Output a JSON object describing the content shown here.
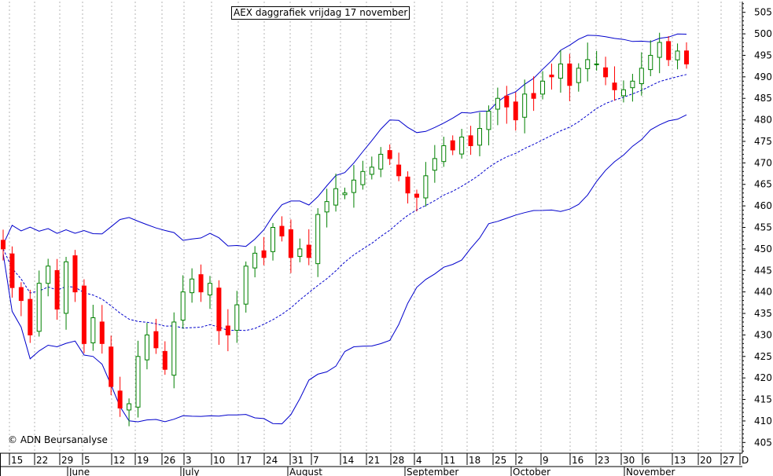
{
  "chart_data": {
    "type": "candlestick",
    "title": "AEX daggrafiek vrijdag 17 november",
    "credit": "© ADN Beursanalyse",
    "ylim": [
      400,
      510
    ],
    "y_ticks": [
      405,
      410,
      415,
      420,
      425,
      430,
      435,
      440,
      445,
      450,
      455,
      460,
      465,
      470,
      475,
      480,
      485,
      490,
      495,
      500,
      505
    ],
    "grid": "vertical dotted lines at each week",
    "x_ticks": [
      "15",
      "22",
      "29",
      "5",
      "12",
      "19",
      "26",
      "3",
      "10",
      "17",
      "24",
      "31",
      "7",
      "14",
      "21",
      "28",
      "4",
      "11",
      "18",
      "25",
      "2",
      "9",
      "16",
      "23",
      "30",
      "6",
      "13",
      "20",
      "27",
      "D"
    ],
    "months": [
      "June",
      "July",
      "August",
      "September",
      "October",
      "November"
    ],
    "colors": {
      "up": "#008000",
      "down": "#ff0000",
      "band": "#0000cc",
      "grid": "#b4b4b4"
    },
    "series": [
      {
        "kind": "candles",
        "open_close_estimated": true
      },
      {
        "kind": "bollinger_upper"
      },
      {
        "kind": "moving_average"
      },
      {
        "kind": "bollinger_lower"
      }
    ],
    "closes": [
      450,
      441,
      438,
      430,
      442,
      446,
      436,
      447,
      440,
      428,
      434,
      428,
      418,
      413,
      414,
      425,
      430,
      427,
      422,
      433,
      440,
      443,
      440,
      442,
      431,
      430,
      437,
      446,
      449,
      448,
      455,
      453,
      448,
      450,
      448,
      458,
      461,
      464,
      463,
      466,
      468,
      469,
      472,
      471,
      467,
      463,
      462,
      467,
      471,
      474,
      473,
      476,
      474,
      478,
      482,
      485,
      483,
      480,
      486,
      485,
      489,
      490,
      493,
      488,
      492,
      494,
      493,
      490,
      487,
      487,
      489,
      492,
      495,
      498,
      494,
      496,
      493
    ]
  }
}
